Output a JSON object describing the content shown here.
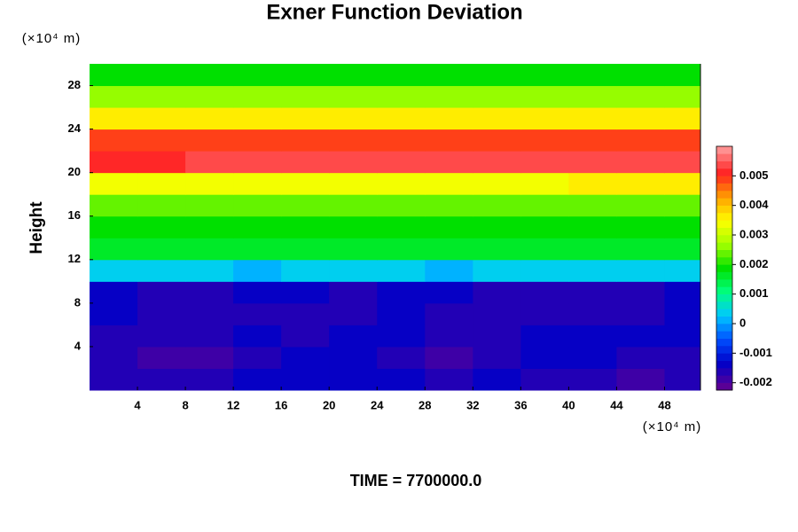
{
  "chart_data": {
    "type": "contour",
    "title": "Exner Function Deviation",
    "ylabel": "Height",
    "yunit": "(×10⁴ m)",
    "xunit": "(×10⁴ m)",
    "footer": "TIME = 7700000.0",
    "xlim": [
      0,
      51
    ],
    "ylim": [
      0,
      30
    ],
    "xticks": [
      4,
      8,
      12,
      16,
      20,
      24,
      28,
      32,
      36,
      40,
      44,
      48
    ],
    "yticks": [
      4,
      8,
      12,
      16,
      20,
      24,
      28
    ],
    "x": [
      2,
      6,
      10,
      14,
      18,
      22,
      26,
      30,
      34,
      38,
      42,
      46,
      50
    ],
    "y": [
      1,
      3,
      5,
      7,
      9,
      11,
      13,
      15,
      17,
      19,
      21,
      23,
      25,
      27,
      29
    ],
    "z": [
      [
        -0.0015,
        -0.0016,
        -0.0015,
        -0.0013,
        -0.0013,
        -0.0013,
        -0.0014,
        -0.0015,
        -0.0014,
        -0.0015,
        -0.0015,
        -0.0018,
        -0.0015
      ],
      [
        -0.0017,
        -0.0018,
        -0.0019,
        -0.0015,
        -0.0014,
        -0.0013,
        -0.0015,
        -0.0019,
        -0.0016,
        -0.0014,
        -0.0014,
        -0.0016,
        -0.0015
      ],
      [
        -0.0016,
        -0.0016,
        -0.0016,
        -0.0014,
        -0.0015,
        -0.0013,
        -0.0013,
        -0.0017,
        -0.0015,
        -0.0014,
        -0.0014,
        -0.0013,
        -0.0013
      ],
      [
        -0.0014,
        -0.0015,
        -0.0015,
        -0.0015,
        -0.0015,
        -0.0015,
        -0.0013,
        -0.0015,
        -0.0015,
        -0.0015,
        -0.0015,
        -0.0015,
        -0.0013
      ],
      [
        -0.0014,
        -0.0015,
        -0.0015,
        -0.0014,
        -0.0014,
        -0.0015,
        -0.0014,
        -0.0014,
        -0.0015,
        -0.0015,
        -0.0015,
        -0.0015,
        -0.0014
      ],
      [
        0.0003,
        0.0003,
        0.0003,
        0.0002,
        0.0003,
        0.0003,
        0.0003,
        0.0002,
        0.0003,
        0.0003,
        0.0003,
        0.0003,
        0.0003
      ],
      [
        0.0016,
        0.0016,
        0.0016,
        0.0016,
        0.0016,
        0.0016,
        0.0016,
        0.0016,
        0.0016,
        0.0016,
        0.0016,
        0.0016,
        0.0016
      ],
      [
        0.0019,
        0.0019,
        0.0019,
        0.0019,
        0.0019,
        0.0019,
        0.0019,
        0.0019,
        0.0019,
        0.0019,
        0.0019,
        0.0019,
        0.0019
      ],
      [
        0.0024,
        0.0024,
        0.0024,
        0.0024,
        0.0024,
        0.0024,
        0.0024,
        0.0024,
        0.0024,
        0.0024,
        0.0024,
        0.0024,
        0.0024
      ],
      [
        0.0033,
        0.0033,
        0.0033,
        0.0034,
        0.0034,
        0.0034,
        0.0034,
        0.0034,
        0.0035,
        0.0035,
        0.0036,
        0.0036,
        0.0037
      ],
      [
        0.0052,
        0.0052,
        0.0053,
        0.0054,
        0.0054,
        0.0055,
        0.0055,
        0.0055,
        0.0055,
        0.0055,
        0.0054,
        0.0054,
        0.0053
      ],
      [
        0.005,
        0.005,
        0.005,
        0.005,
        0.005,
        0.005,
        0.005,
        0.005,
        0.005,
        0.005,
        0.005,
        0.005,
        0.005
      ],
      [
        0.0036,
        0.0036,
        0.0036,
        0.0036,
        0.0036,
        0.0036,
        0.0036,
        0.0036,
        0.0036,
        0.0036,
        0.0036,
        0.0036,
        0.0036
      ],
      [
        0.0026,
        0.0026,
        0.0026,
        0.0026,
        0.0026,
        0.0026,
        0.0026,
        0.0026,
        0.0026,
        0.0026,
        0.0026,
        0.0026,
        0.0026
      ],
      [
        0.0018,
        0.0018,
        0.0018,
        0.0018,
        0.0018,
        0.0018,
        0.0018,
        0.0018,
        0.0018,
        0.0018,
        0.0018,
        0.0018,
        0.0018
      ]
    ],
    "clim": [
      -0.00225,
      0.006
    ],
    "ncolors": 33,
    "colormap": [
      "#5a0096",
      "#0000c8",
      "#0050ff",
      "#00c8ff",
      "#00ff80",
      "#00e000",
      "#a0ff00",
      "#ffff00",
      "#ffa000",
      "#ff2020",
      "#ff9090"
    ],
    "cticks": [
      -0.002,
      -0.001,
      0,
      0.001,
      0.002,
      0.003,
      0.004,
      0.005
    ]
  }
}
